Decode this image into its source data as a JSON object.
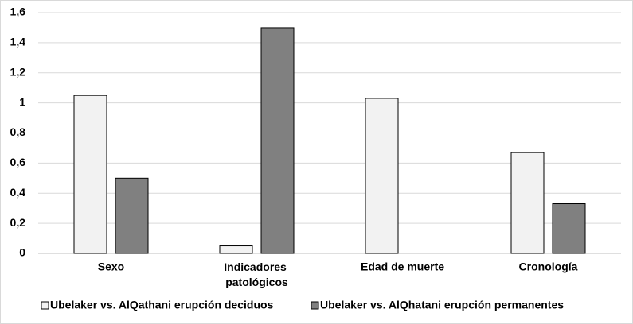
{
  "chart_data": {
    "type": "bar",
    "categories": [
      "Sexo",
      "Indicadores patológicos",
      "Edad de muerte",
      "Cronología"
    ],
    "series": [
      {
        "name": "Ubelaker vs. AlQathani erupción deciduos",
        "color": "#f2f2f2",
        "values": [
          1.05,
          0.05,
          1.03,
          0.67
        ]
      },
      {
        "name": "Ubelaker vs. AlQhatani erupción permanentes",
        "color": "#808080",
        "values": [
          0.5,
          1.5,
          0,
          0.33
        ]
      }
    ],
    "ylim": [
      0,
      1.6
    ],
    "yticks": [
      0,
      {
        "value": 0.2,
        "label": "0,2"
      },
      {
        "value": 0.4,
        "label": "0,4"
      },
      {
        "value": 0.6,
        "label": "0,6"
      },
      {
        "value": 0.8,
        "label": "0,8"
      },
      1,
      {
        "value": 1.2,
        "label": "1,2"
      },
      {
        "value": 1.4,
        "label": "1,4"
      },
      {
        "value": 1.6,
        "label": "1,6"
      }
    ],
    "grid": true,
    "legend": "bottom"
  }
}
